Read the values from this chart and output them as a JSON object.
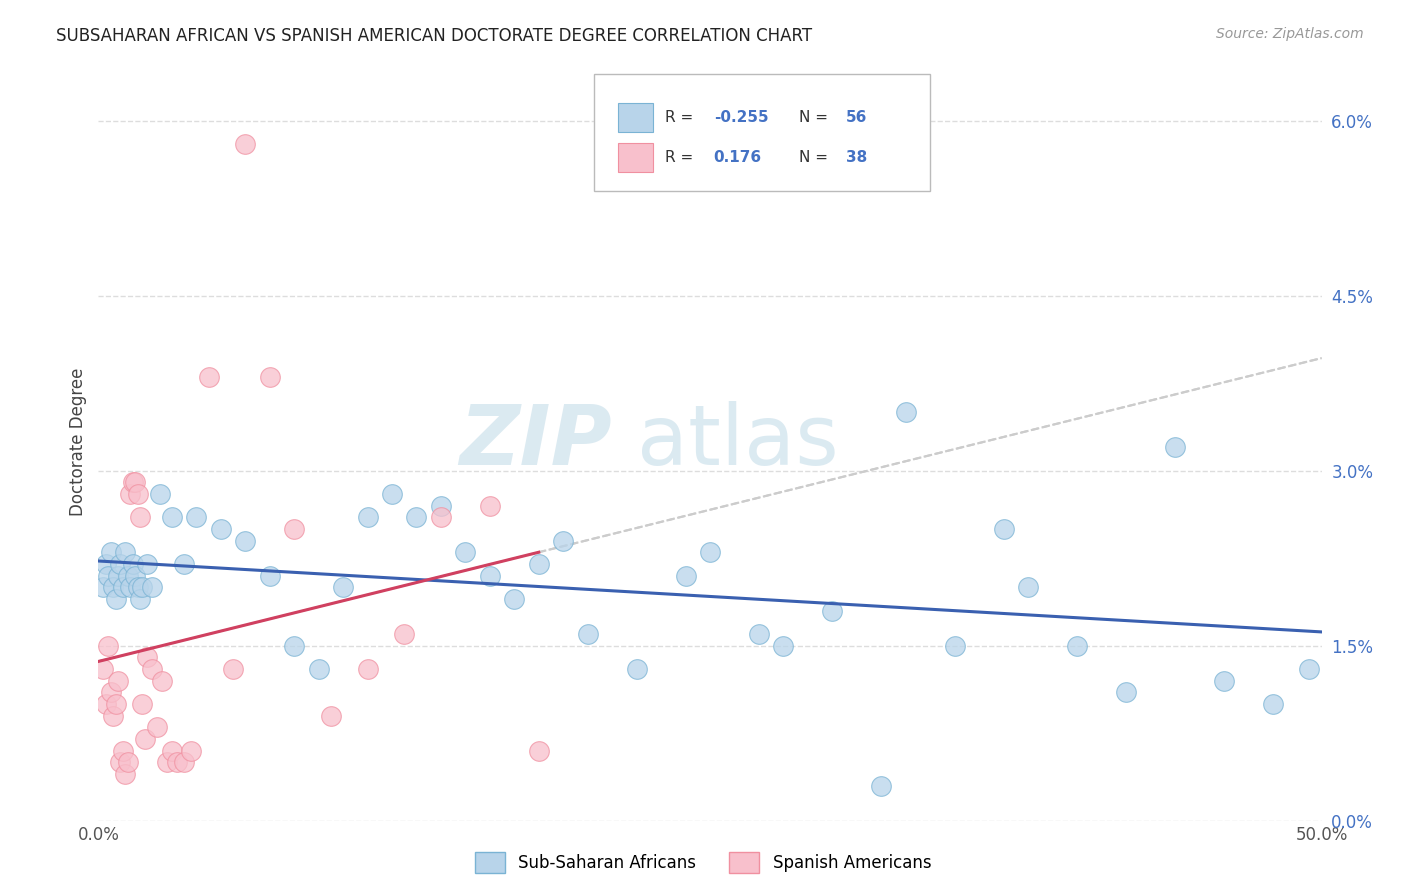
{
  "title": "SUBSAHARAN AFRICAN VS SPANISH AMERICAN DOCTORATE DEGREE CORRELATION CHART",
  "source": "Source: ZipAtlas.com",
  "ylabel": "Doctorate Degree",
  "right_ytick_vals": [
    0.0,
    1.5,
    3.0,
    4.5,
    6.0
  ],
  "watermark_zip": "ZIP",
  "watermark_atlas": "atlas",
  "blue_color": "#7ab3d4",
  "pink_color": "#f090a0",
  "blue_fill": "#b8d4ea",
  "pink_fill": "#f8c0cc",
  "trend_blue": "#3a60b0",
  "trend_pink": "#d04060",
  "trend_gray_color": "#cccccc",
  "xmin": 0.0,
  "xmax": 50.0,
  "ymin": 0.0,
  "ymax": 6.5,
  "blue_x": [
    0.2,
    0.3,
    0.4,
    0.5,
    0.6,
    0.7,
    0.8,
    0.9,
    1.0,
    1.1,
    1.2,
    1.3,
    1.4,
    1.5,
    1.6,
    1.7,
    1.8,
    2.0,
    2.2,
    2.5,
    3.0,
    3.5,
    4.0,
    5.0,
    6.0,
    7.0,
    8.0,
    9.0,
    10.0,
    11.0,
    12.0,
    13.0,
    14.0,
    15.0,
    16.0,
    17.0,
    18.0,
    19.0,
    20.0,
    22.0,
    24.0,
    25.0,
    27.0,
    28.0,
    30.0,
    32.0,
    33.0,
    35.0,
    37.0,
    38.0,
    40.0,
    42.0,
    44.0,
    46.0,
    48.0,
    49.5
  ],
  "blue_y": [
    2.0,
    2.2,
    2.1,
    2.3,
    2.0,
    1.9,
    2.1,
    2.2,
    2.0,
    2.3,
    2.1,
    2.0,
    2.2,
    2.1,
    2.0,
    1.9,
    2.0,
    2.2,
    2.0,
    2.8,
    2.6,
    2.2,
    2.6,
    2.5,
    2.4,
    2.1,
    1.5,
    1.3,
    2.0,
    2.6,
    2.8,
    2.6,
    2.7,
    2.3,
    2.1,
    1.9,
    2.2,
    2.4,
    1.6,
    1.3,
    2.1,
    2.3,
    1.6,
    1.5,
    1.8,
    0.3,
    3.5,
    1.5,
    2.5,
    2.0,
    1.5,
    1.1,
    3.2,
    1.2,
    1.0,
    1.3
  ],
  "pink_x": [
    0.2,
    0.3,
    0.4,
    0.5,
    0.6,
    0.7,
    0.8,
    0.9,
    1.0,
    1.1,
    1.2,
    1.3,
    1.4,
    1.5,
    1.6,
    1.7,
    1.8,
    1.9,
    2.0,
    2.2,
    2.4,
    2.6,
    2.8,
    3.0,
    3.2,
    3.5,
    3.8,
    4.5,
    5.5,
    6.0,
    7.0,
    8.0,
    9.5,
    11.0,
    12.5,
    14.0,
    16.0,
    18.0
  ],
  "pink_y": [
    1.3,
    1.0,
    1.5,
    1.1,
    0.9,
    1.0,
    1.2,
    0.5,
    0.6,
    0.4,
    0.5,
    2.8,
    2.9,
    2.9,
    2.8,
    2.6,
    1.0,
    0.7,
    1.4,
    1.3,
    0.8,
    1.2,
    0.5,
    0.6,
    0.5,
    0.5,
    0.6,
    3.8,
    1.3,
    5.8,
    3.8,
    2.5,
    0.9,
    1.3,
    1.6,
    2.6,
    2.7,
    0.6
  ]
}
